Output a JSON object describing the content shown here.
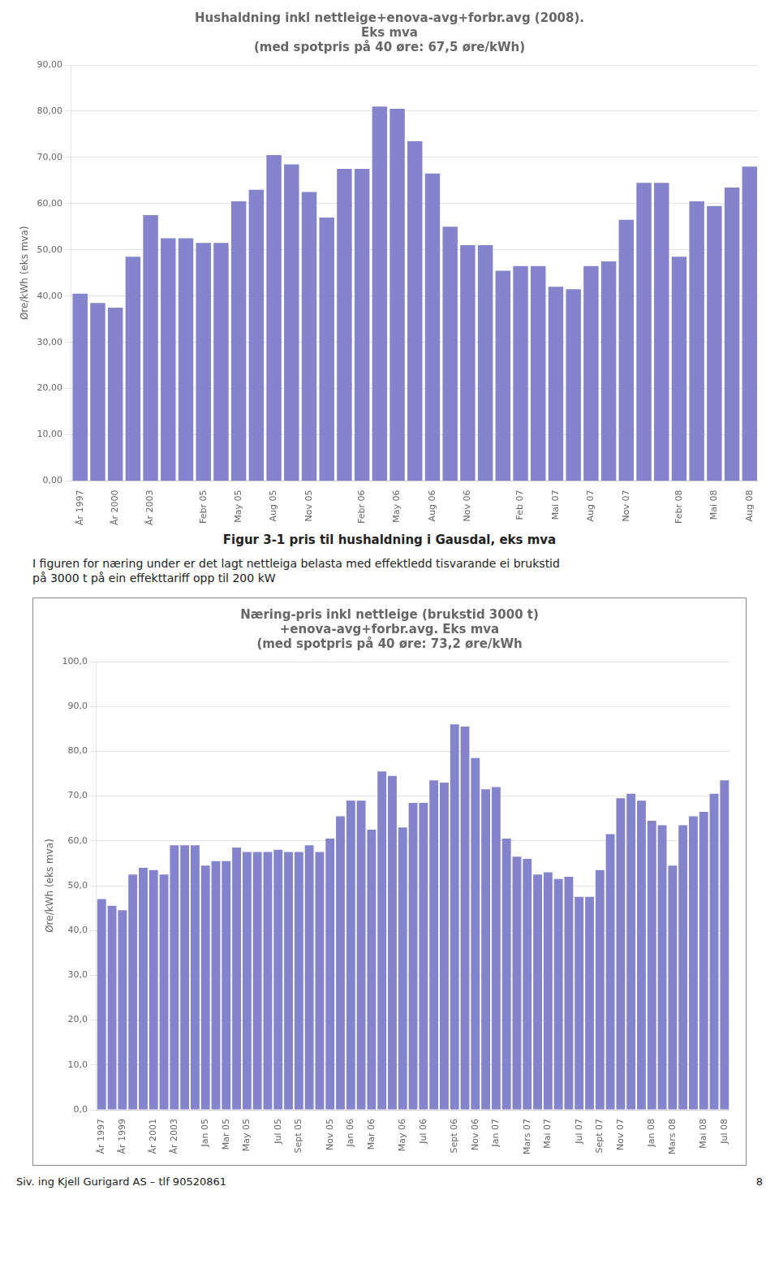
{
  "chart_data": [
    {
      "type": "bar",
      "title": [
        "Hushaldning inkl nettleige+enova-avg+forbr.avg (2008).",
        "Eks mva",
        "(med spotpris på 40 øre: 67,5 øre/kWh)"
      ],
      "y_label": "Øre/kWh (eks mva)",
      "categories": [
        "År 1997",
        null,
        "År 2000",
        null,
        "År 2003",
        null,
        null,
        "Febr 05",
        null,
        "May 05",
        null,
        "Aug 05",
        null,
        "Nov 05",
        null,
        null,
        "Febr 06",
        null,
        "May 06",
        null,
        "Aug 06",
        null,
        "Nov 06",
        null,
        null,
        "Feb 07",
        null,
        "Mai 07",
        null,
        "Aug 07",
        null,
        "Nov 07",
        null,
        null,
        "Febr 08",
        null,
        "Mai 08",
        null,
        "Aug 08"
      ],
      "values": [
        40.5,
        38.5,
        37.5,
        48.5,
        57.5,
        52.5,
        52.5,
        51.5,
        51.5,
        60.5,
        63.0,
        70.5,
        68.5,
        62.5,
        57.0,
        67.5,
        67.5,
        81.0,
        80.5,
        73.5,
        66.5,
        55.0,
        51.0,
        51.0,
        45.5,
        46.5,
        46.5,
        42.0,
        41.5,
        46.5,
        47.5,
        56.5,
        64.5,
        64.5,
        48.5,
        60.5,
        59.5,
        63.5,
        68.0
      ],
      "color": "#8484cc",
      "ylim": [
        0,
        90
      ],
      "yticks": [
        {
          "value": 0,
          "label": "0,00"
        },
        {
          "value": 10,
          "label": "10,00"
        },
        {
          "value": 20,
          "label": "20,00"
        },
        {
          "value": 30,
          "label": "30,00"
        },
        {
          "value": 40,
          "label": "40,00"
        },
        {
          "value": 50,
          "label": "50,00"
        },
        {
          "value": 60,
          "label": "60,00"
        },
        {
          "value": 70,
          "label": "70,00"
        },
        {
          "value": 80,
          "label": "80,00"
        },
        {
          "value": 90,
          "label": "90,00"
        }
      ],
      "grid": true,
      "annotations": [
        "Figur 3-1 pris til hushaldning i Gausdal, eks mva",
        "I figuren for  næring under  er det lagt nettleiga belasta med effektledd tisvarande ei brukstid",
        "på 3000 t på ein effekttariff opp til 200 kW"
      ]
    },
    {
      "type": "bar",
      "title": [
        "Næring-pris inkl nettleige (brukstid 3000 t)",
        "+enova-avg+forbr.avg. Eks mva",
        "(med spotpris på 40 øre: 73,2 øre/kWh"
      ],
      "y_label": "Øre/kWh (eks mva)",
      "categories": [
        "År 1997",
        null,
        "År 1999",
        null,
        null,
        "År 2001",
        null,
        "År 2003",
        null,
        null,
        "Jan 05",
        null,
        "Mar 05",
        null,
        "May 05",
        null,
        null,
        "Jul 05",
        null,
        "Sept 05",
        null,
        null,
        "Nov 05",
        null,
        "Jan 06",
        null,
        "Mar 06",
        null,
        null,
        "May 06",
        null,
        "Jul 06",
        null,
        null,
        "Sept 06",
        null,
        "Nov 06",
        null,
        "Jan 07",
        null,
        null,
        "Mars 07",
        null,
        "Mai 07",
        null,
        null,
        "Jul 07",
        null,
        "Sept 07",
        null,
        "Nov 07",
        null,
        null,
        "Jan 08",
        null,
        "Mars 08",
        null,
        null,
        "Mai 08",
        null,
        "Jul 08"
      ],
      "values": [
        47.0,
        45.5,
        44.5,
        52.5,
        54.0,
        53.5,
        52.5,
        59.0,
        59.0,
        59.0,
        54.5,
        55.5,
        55.5,
        58.5,
        57.5,
        57.5,
        57.5,
        58.0,
        57.5,
        57.5,
        59.0,
        57.5,
        60.5,
        65.5,
        69.0,
        69.0,
        62.5,
        75.5,
        74.5,
        63.0,
        68.5,
        68.5,
        73.5,
        73.0,
        86.0,
        85.5,
        78.5,
        71.5,
        72.0,
        60.5,
        56.5,
        56.0,
        52.5,
        53.0,
        51.5,
        52.0,
        47.5,
        47.5,
        53.5,
        61.5,
        69.5,
        70.5,
        69.0,
        64.5,
        63.5,
        54.5,
        63.5,
        65.5,
        66.5,
        70.5,
        73.5
      ],
      "color": "#8484cc",
      "ylim": [
        0,
        100
      ],
      "yticks": [
        {
          "value": 0,
          "label": "0,0"
        },
        {
          "value": 10,
          "label": "10,0"
        },
        {
          "value": 20,
          "label": "20,0"
        },
        {
          "value": 30,
          "label": "30,0"
        },
        {
          "value": 40,
          "label": "40,0"
        },
        {
          "value": 50,
          "label": "50,0"
        },
        {
          "value": 60,
          "label": "60,0"
        },
        {
          "value": 70,
          "label": "70,0"
        },
        {
          "value": 80,
          "label": "80,0"
        },
        {
          "value": 90,
          "label": "90,0"
        },
        {
          "value": 100,
          "label": "100,0"
        }
      ],
      "grid": true,
      "annotations": [
        "Siv. ing Kjell Gurigard AS – tlf 90520861",
        "8"
      ]
    }
  ]
}
